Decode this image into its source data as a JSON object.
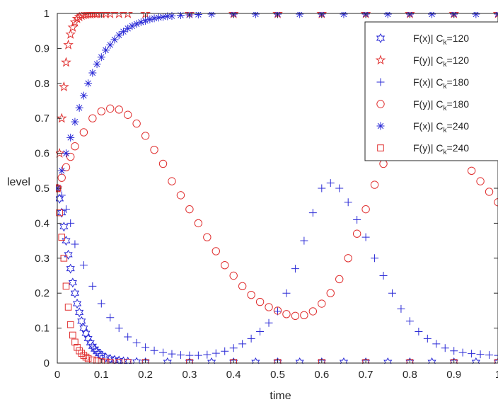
{
  "chart_data": {
    "type": "scatter",
    "title": "",
    "xlabel": "time",
    "ylabel": "level",
    "xlim": [
      0,
      1
    ],
    "ylim": [
      0,
      1
    ],
    "xticks": [
      "0",
      "0.1",
      "0.2",
      "0.3",
      "0.4",
      "0.5",
      "0.6",
      "0.7",
      "0.8",
      "0.9",
      "1"
    ],
    "yticks": [
      "0",
      "0.1",
      "0.2",
      "0.3",
      "0.4",
      "0.5",
      "0.6",
      "0.7",
      "0.8",
      "0.9",
      "1"
    ],
    "grid": false,
    "legend_position": "top-right",
    "series": [
      {
        "name": "F(x)| C_k=120",
        "legend": {
          "prefix": "F(x)| C",
          "sub": "k",
          "suffix": "=120"
        },
        "color": "#2b2bd6",
        "marker": "hexagram",
        "x": [
          0,
          0.005,
          0.01,
          0.015,
          0.02,
          0.025,
          0.03,
          0.035,
          0.04,
          0.045,
          0.05,
          0.055,
          0.06,
          0.065,
          0.07,
          0.075,
          0.08,
          0.085,
          0.09,
          0.095,
          0.1,
          0.11,
          0.12,
          0.13,
          0.14,
          0.15,
          0.16,
          0.18,
          0.2,
          0.25,
          0.3,
          0.35,
          0.4,
          0.45,
          0.5,
          0.55,
          0.6,
          0.65,
          0.7,
          0.75,
          0.8,
          0.85,
          0.9,
          0.95,
          1.0
        ],
        "y": [
          0.5,
          0.47,
          0.43,
          0.39,
          0.35,
          0.31,
          0.27,
          0.23,
          0.2,
          0.17,
          0.145,
          0.12,
          0.1,
          0.085,
          0.07,
          0.058,
          0.048,
          0.04,
          0.033,
          0.027,
          0.022,
          0.016,
          0.012,
          0.009,
          0.007,
          0.005,
          0.004,
          0.003,
          0.002,
          0.002,
          0.002,
          0.002,
          0.002,
          0.002,
          0.002,
          0.002,
          0.002,
          0.002,
          0.002,
          0.002,
          0.002,
          0.002,
          0.002,
          0.002,
          0.002
        ]
      },
      {
        "name": "F(y)| C_k=120",
        "legend": {
          "prefix": "F(y)| C",
          "sub": "k",
          "suffix": "=120"
        },
        "color": "#e03030",
        "marker": "pentagram",
        "x": [
          0,
          0.005,
          0.01,
          0.015,
          0.02,
          0.025,
          0.03,
          0.035,
          0.04,
          0.045,
          0.05,
          0.055,
          0.06,
          0.065,
          0.07,
          0.075,
          0.08,
          0.085,
          0.09,
          0.1,
          0.11,
          0.12,
          0.14,
          0.16,
          0.2,
          0.3,
          0.4,
          0.5,
          0.6,
          0.7,
          0.8,
          0.9,
          1.0
        ],
        "y": [
          0.5,
          0.6,
          0.7,
          0.79,
          0.86,
          0.91,
          0.94,
          0.96,
          0.975,
          0.985,
          0.99,
          0.994,
          0.996,
          0.997,
          0.998,
          0.998,
          0.999,
          0.999,
          0.999,
          0.999,
          0.999,
          0.999,
          0.999,
          0.999,
          0.999,
          0.999,
          0.999,
          0.999,
          0.999,
          0.999,
          0.999,
          0.999,
          0.999
        ]
      },
      {
        "name": "F(x)| C_k=180",
        "legend": {
          "prefix": "F(x)| C",
          "sub": "k",
          "suffix": "=180"
        },
        "color": "#2b2bd6",
        "marker": "plus",
        "x": [
          0,
          0.01,
          0.02,
          0.03,
          0.04,
          0.06,
          0.08,
          0.1,
          0.12,
          0.14,
          0.16,
          0.18,
          0.2,
          0.22,
          0.24,
          0.26,
          0.28,
          0.3,
          0.32,
          0.34,
          0.36,
          0.38,
          0.4,
          0.42,
          0.44,
          0.46,
          0.48,
          0.5,
          0.52,
          0.54,
          0.56,
          0.58,
          0.6,
          0.62,
          0.64,
          0.66,
          0.68,
          0.7,
          0.72,
          0.74,
          0.76,
          0.78,
          0.8,
          0.82,
          0.84,
          0.86,
          0.88,
          0.9,
          0.92,
          0.94,
          0.96,
          0.98,
          1.0
        ],
        "y": [
          0.5,
          0.48,
          0.44,
          0.4,
          0.34,
          0.28,
          0.22,
          0.17,
          0.13,
          0.1,
          0.075,
          0.058,
          0.045,
          0.036,
          0.03,
          0.026,
          0.023,
          0.022,
          0.022,
          0.024,
          0.028,
          0.034,
          0.043,
          0.055,
          0.07,
          0.09,
          0.115,
          0.148,
          0.2,
          0.27,
          0.35,
          0.43,
          0.5,
          0.515,
          0.5,
          0.46,
          0.41,
          0.36,
          0.3,
          0.25,
          0.2,
          0.155,
          0.12,
          0.09,
          0.07,
          0.055,
          0.043,
          0.035,
          0.03,
          0.027,
          0.025,
          0.023,
          0.022
        ]
      },
      {
        "name": "F(y)| C_k=180",
        "legend": {
          "prefix": "F(y)| C",
          "sub": "k",
          "suffix": "=180"
        },
        "color": "#e03030",
        "marker": "circle",
        "x": [
          0,
          0.01,
          0.02,
          0.03,
          0.04,
          0.06,
          0.08,
          0.1,
          0.12,
          0.14,
          0.16,
          0.18,
          0.2,
          0.22,
          0.24,
          0.26,
          0.28,
          0.3,
          0.32,
          0.34,
          0.36,
          0.38,
          0.4,
          0.42,
          0.44,
          0.46,
          0.48,
          0.5,
          0.52,
          0.54,
          0.56,
          0.58,
          0.6,
          0.62,
          0.64,
          0.66,
          0.68,
          0.7,
          0.72,
          0.74,
          0.76,
          0.78,
          0.8,
          0.82,
          0.84,
          0.86,
          0.88,
          0.9,
          0.92,
          0.94,
          0.96,
          0.98,
          1.0
        ],
        "y": [
          0.5,
          0.53,
          0.56,
          0.59,
          0.62,
          0.66,
          0.7,
          0.72,
          0.728,
          0.725,
          0.71,
          0.685,
          0.65,
          0.61,
          0.57,
          0.52,
          0.48,
          0.44,
          0.4,
          0.36,
          0.32,
          0.28,
          0.25,
          0.22,
          0.195,
          0.175,
          0.16,
          0.15,
          0.14,
          0.135,
          0.137,
          0.148,
          0.17,
          0.2,
          0.24,
          0.3,
          0.37,
          0.44,
          0.51,
          0.57,
          0.62,
          0.66,
          0.69,
          0.7,
          0.7,
          0.685,
          0.66,
          0.63,
          0.59,
          0.55,
          0.52,
          0.49,
          0.46
        ]
      },
      {
        "name": "F(x)| C_k=240",
        "legend": {
          "prefix": "F(x)| C",
          "sub": "k",
          "suffix": "=240"
        },
        "color": "#2b2bd6",
        "marker": "asterisk",
        "x": [
          0,
          0.01,
          0.02,
          0.03,
          0.04,
          0.05,
          0.06,
          0.07,
          0.08,
          0.09,
          0.1,
          0.11,
          0.12,
          0.13,
          0.14,
          0.15,
          0.16,
          0.17,
          0.18,
          0.19,
          0.2,
          0.21,
          0.22,
          0.23,
          0.24,
          0.25,
          0.26,
          0.28,
          0.3,
          0.32,
          0.35,
          0.4,
          0.45,
          0.5,
          0.55,
          0.6,
          0.65,
          0.7,
          0.75,
          0.8,
          0.85,
          0.9,
          0.95,
          1.0
        ],
        "y": [
          0.5,
          0.55,
          0.6,
          0.645,
          0.69,
          0.73,
          0.765,
          0.8,
          0.83,
          0.855,
          0.875,
          0.895,
          0.91,
          0.925,
          0.938,
          0.948,
          0.957,
          0.964,
          0.97,
          0.975,
          0.979,
          0.983,
          0.986,
          0.988,
          0.99,
          0.992,
          0.993,
          0.995,
          0.996,
          0.997,
          0.998,
          0.998,
          0.998,
          0.998,
          0.998,
          0.998,
          0.998,
          0.998,
          0.998,
          0.998,
          0.998,
          0.998,
          0.998,
          0.998
        ]
      },
      {
        "name": "F(y)| C_k=240",
        "legend": {
          "prefix": "F(y)| C",
          "sub": "k",
          "suffix": "=240"
        },
        "color": "#e03030",
        "marker": "square",
        "x": [
          0,
          0.005,
          0.01,
          0.015,
          0.02,
          0.025,
          0.03,
          0.035,
          0.04,
          0.045,
          0.05,
          0.055,
          0.06,
          0.065,
          0.07,
          0.08,
          0.09,
          0.1,
          0.11,
          0.12,
          0.14,
          0.16,
          0.2,
          0.3,
          0.4,
          0.5,
          0.6,
          0.7,
          0.8,
          0.9,
          1.0
        ],
        "y": [
          0.5,
          0.43,
          0.36,
          0.3,
          0.22,
          0.16,
          0.11,
          0.08,
          0.06,
          0.045,
          0.035,
          0.028,
          0.022,
          0.017,
          0.013,
          0.009,
          0.006,
          0.004,
          0.003,
          0.002,
          0.002,
          0.002,
          0.002,
          0.002,
          0.002,
          0.002,
          0.002,
          0.002,
          0.002,
          0.002,
          0.002
        ]
      }
    ]
  }
}
